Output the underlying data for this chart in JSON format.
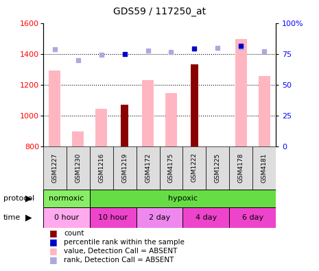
{
  "title": "GDS59 / 117250_at",
  "samples": [
    "GSM1227",
    "GSM1230",
    "GSM1216",
    "GSM1219",
    "GSM4172",
    "GSM4175",
    "GSM1222",
    "GSM1225",
    "GSM4178",
    "GSM4181"
  ],
  "values_pink": [
    1290,
    895,
    1045,
    null,
    1230,
    1145,
    null,
    null,
    1495,
    1255
  ],
  "values_red": [
    null,
    null,
    null,
    1070,
    null,
    null,
    1330,
    null,
    null,
    null
  ],
  "ranks_dark_blue": [
    null,
    null,
    null,
    1400,
    null,
    null,
    1435,
    null,
    1450,
    null
  ],
  "ranks_light_blue": [
    1430,
    1360,
    1395,
    null,
    1420,
    1410,
    null,
    1440,
    1445,
    1415
  ],
  "ylim_left": [
    800,
    1600
  ],
  "ylim_right": [
    0,
    100
  ],
  "yticks_left": [
    800,
    1000,
    1200,
    1400,
    1600
  ],
  "yticks_right": [
    0,
    25,
    50,
    75,
    100
  ],
  "pink_color": "#FFB6C1",
  "dark_red_color": "#8B0000",
  "dark_blue_color": "#0000CC",
  "light_blue_color": "#AAAADD",
  "sample_bg_color": "#DDDDDD",
  "normoxic_color": "#88EE66",
  "hypoxic_color": "#66DD44",
  "time_0h_color": "#FFAAEE",
  "time_10h_color": "#EE44CC",
  "time_2d_color": "#EE88EE",
  "time_4d_color": "#EE44CC",
  "time_6d_color": "#EE44CC"
}
